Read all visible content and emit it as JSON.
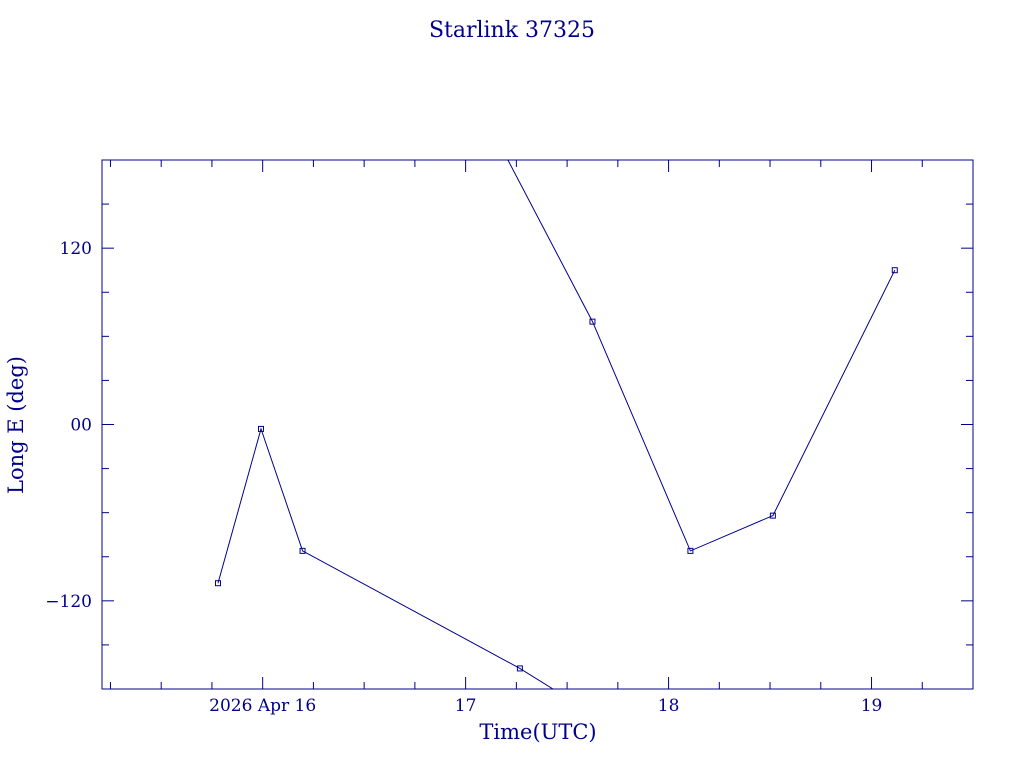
{
  "chart_data": {
    "type": "line",
    "title": "Starlink 37325",
    "xlabel": "Time(UTC)",
    "ylabel": "Long E (deg)",
    "color": "#00008b",
    "x_is_date": true,
    "xlim": [
      "2026-04-15 05:00",
      "2026-04-19 12:00"
    ],
    "ylim": [
      -180,
      180
    ],
    "x_ticks": [
      {
        "x": "2026-04-16 00:00",
        "label": "2026 Apr 16"
      },
      {
        "x": "2026-04-17 00:00",
        "label": "17"
      },
      {
        "x": "2026-04-18 00:00",
        "label": "18"
      },
      {
        "x": "2026-04-19 00:00",
        "label": "19"
      }
    ],
    "x_minor_tick_hours": 6,
    "y_ticks": [
      {
        "y": 120,
        "label": "120"
      },
      {
        "y": 0,
        "label": "00"
      },
      {
        "y": -120,
        "label": "−120"
      }
    ],
    "y_minor_tick_step": 30,
    "grid": false,
    "series": [
      {
        "segments": [
          {
            "marked_points": [
              {
                "x": "2026-04-15 18:43",
                "y": -108
              },
              {
                "x": "2026-04-15 23:48",
                "y": -3
              },
              {
                "x": "2026-04-16 04:43",
                "y": -86
              },
              {
                "x": "2026-04-17 06:25",
                "y": -166
              }
            ],
            "exits_to": {
              "x": "2026-04-17 10:20",
              "y": -180
            }
          },
          {
            "enters_from": {
              "x": "2026-04-17 05:00",
              "y": 180
            },
            "marked_points": [
              {
                "x": "2026-04-17 15:00",
                "y": 70
              },
              {
                "x": "2026-04-18 02:35",
                "y": -86
              },
              {
                "x": "2026-04-18 12:20",
                "y": -62
              },
              {
                "x": "2026-04-19 02:45",
                "y": 105
              }
            ]
          }
        ]
      }
    ]
  }
}
